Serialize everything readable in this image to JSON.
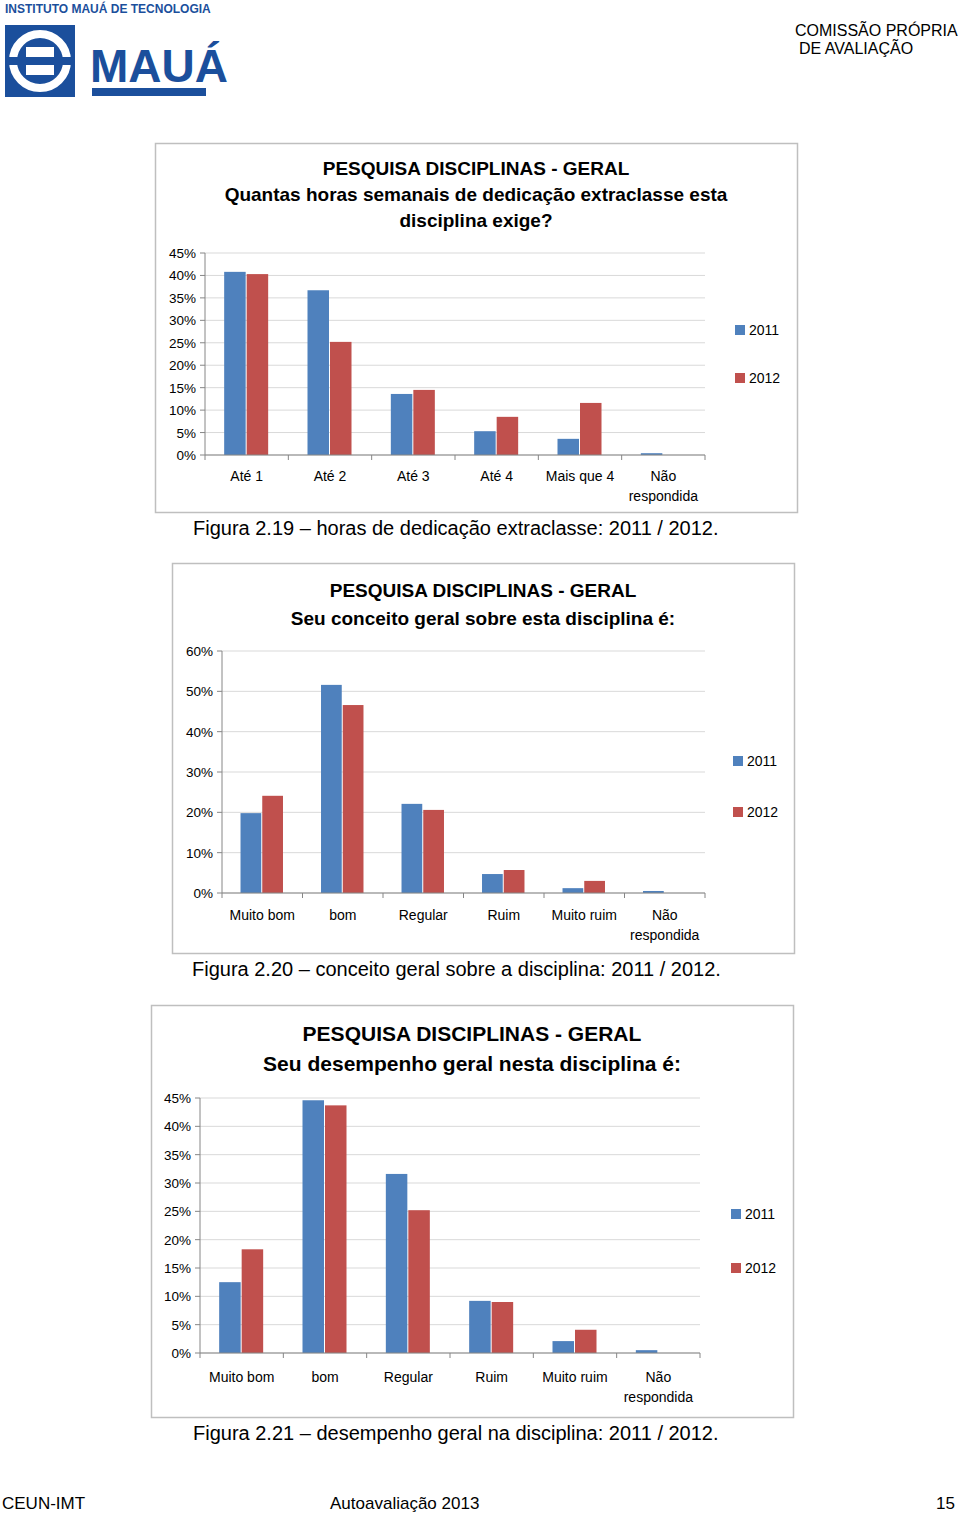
{
  "header": {
    "institute": "INSTITUTO MAUÁ DE TECNOLOGIA",
    "logo_text": "MAUÁ",
    "commission": [
      "COMISSÃO PRÓPRIA",
      "DE AVALIAÇÃO"
    ]
  },
  "chart_data": [
    {
      "type": "bar",
      "title": "PESQUISA DISCIPLINAS - GERAL",
      "subtitle": "Quantas horas semanais de dedicação extraclasse esta disciplina exige?",
      "categories": [
        "Até 1",
        "Até 2",
        "Até 3",
        "Até 4",
        "Mais que 4",
        "Não respondida"
      ],
      "series": [
        {
          "name": "2011",
          "color": "#4f81bd",
          "values": [
            40.8,
            36.7,
            13.6,
            5.3,
            3.6,
            0.4
          ]
        },
        {
          "name": "2012",
          "color": "#c0504d",
          "values": [
            40.3,
            25.2,
            14.5,
            8.5,
            11.6,
            0
          ]
        }
      ],
      "ylim": [
        0,
        45
      ],
      "yticks": [
        {
          "value": 0,
          "label": "0%"
        },
        {
          "value": 5,
          "label": "5%"
        },
        {
          "value": 10,
          "label": "10%"
        },
        {
          "value": 15,
          "label": "15%"
        },
        {
          "value": 20,
          "label": "20%"
        },
        {
          "value": 25,
          "label": "25%"
        },
        {
          "value": 30,
          "label": "30%"
        },
        {
          "value": 35,
          "label": "35%"
        },
        {
          "value": 40,
          "label": "40%"
        },
        {
          "value": 45,
          "label": "45%"
        }
      ],
      "grid": true,
      "legend": "right"
    },
    {
      "type": "bar",
      "title": "PESQUISA DISCIPLINAS - GERAL",
      "subtitle": "Seu conceito geral sobre esta disciplina é:",
      "categories": [
        "Muito bom",
        "bom",
        "Regular",
        "Ruim",
        "Muito ruim",
        "Não respondida"
      ],
      "series": [
        {
          "name": "2011",
          "color": "#4f81bd",
          "values": [
            19.8,
            51.6,
            22.1,
            4.7,
            1.2,
            0.5
          ]
        },
        {
          "name": "2012",
          "color": "#c0504d",
          "values": [
            24.1,
            46.6,
            20.6,
            5.7,
            3.0,
            0
          ]
        }
      ],
      "ylim": [
        0,
        60
      ],
      "yticks": [
        {
          "value": 0,
          "label": "0%"
        },
        {
          "value": 10,
          "label": "10%"
        },
        {
          "value": 20,
          "label": "20%"
        },
        {
          "value": 30,
          "label": "30%"
        },
        {
          "value": 40,
          "label": "40%"
        },
        {
          "value": 50,
          "label": "50%"
        },
        {
          "value": 60,
          "label": "60%"
        }
      ],
      "grid": true,
      "legend": "right"
    },
    {
      "type": "bar",
      "title": "PESQUISA DISCIPLINAS - GERAL",
      "subtitle": "Seu desempenho geral nesta disciplina é:",
      "categories": [
        "Muito bom",
        "bom",
        "Regular",
        "Ruim",
        "Muito ruim",
        "Não respondida"
      ],
      "series": [
        {
          "name": "2011",
          "color": "#4f81bd",
          "values": [
            12.5,
            44.6,
            31.6,
            9.2,
            2.1,
            0.5
          ]
        },
        {
          "name": "2012",
          "color": "#c0504d",
          "values": [
            18.3,
            43.7,
            25.2,
            9.0,
            4.1,
            0
          ]
        }
      ],
      "ylim": [
        0,
        45
      ],
      "yticks": [
        {
          "value": 0,
          "label": "0%"
        },
        {
          "value": 5,
          "label": "5%"
        },
        {
          "value": 10,
          "label": "10%"
        },
        {
          "value": 15,
          "label": "15%"
        },
        {
          "value": 20,
          "label": "20%"
        },
        {
          "value": 25,
          "label": "25%"
        },
        {
          "value": 30,
          "label": "30%"
        },
        {
          "value": 35,
          "label": "35%"
        },
        {
          "value": 40,
          "label": "40%"
        },
        {
          "value": 45,
          "label": "45%"
        }
      ],
      "grid": true,
      "legend": "right"
    }
  ],
  "captions": [
    "Figura 2.19 – horas de dedicação extraclasse: 2011 / 2012.",
    "Figura 2.20 – conceito geral sobre a disciplina: 2011 / 2012.",
    "Figura 2.21 – desempenho geral na disciplina: 2011 / 2012."
  ],
  "footer": {
    "left": "CEUN-IMT",
    "center": "Autoavaliação 2013",
    "page": "15"
  }
}
